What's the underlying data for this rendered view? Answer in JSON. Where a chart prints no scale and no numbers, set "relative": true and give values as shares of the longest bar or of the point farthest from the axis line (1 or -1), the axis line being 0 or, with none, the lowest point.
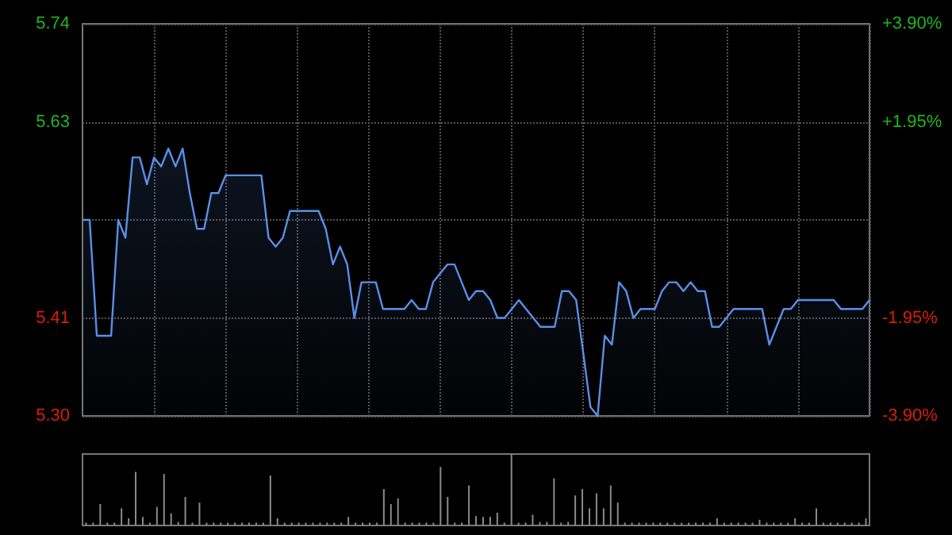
{
  "chart_data": [
    {
      "type": "area",
      "categories": [
        null,
        null,
        null,
        null,
        null,
        null,
        null,
        null,
        null,
        null,
        null,
        null,
        null,
        null,
        null,
        null,
        null,
        null,
        null,
        null,
        null,
        null,
        null,
        null,
        null,
        null,
        null,
        null,
        null,
        null,
        null,
        null,
        null,
        null,
        null,
        null,
        null,
        null,
        null,
        null,
        null,
        null,
        null,
        null,
        null,
        null,
        null,
        null,
        null,
        null,
        null,
        null,
        null,
        null,
        null,
        null,
        null,
        null,
        null,
        null,
        null,
        null,
        null,
        null,
        null,
        null,
        null,
        null,
        null,
        null,
        null,
        null,
        null,
        null,
        null,
        null,
        null,
        null,
        null,
        null,
        null,
        null,
        null,
        null,
        null,
        null,
        null,
        null,
        null,
        null,
        null,
        null,
        null,
        null,
        null,
        null,
        null,
        null,
        null,
        null,
        null,
        null,
        null,
        null,
        null,
        null,
        null,
        null,
        null,
        null,
        null
      ],
      "series": [
        {
          "color": "#5b8fe8",
          "values": [
            5.52,
            5.52,
            5.39,
            5.39,
            5.39,
            5.52,
            5.5,
            5.59,
            5.59,
            5.56,
            5.59,
            5.58,
            5.6,
            5.58,
            5.6,
            5.55,
            5.51,
            5.51,
            5.55,
            5.55,
            5.57,
            5.57,
            5.57,
            5.57,
            5.57,
            5.57,
            5.5,
            5.49,
            5.5,
            5.53,
            5.53,
            5.53,
            5.53,
            5.53,
            5.51,
            5.47,
            5.49,
            5.47,
            5.41,
            5.45,
            5.45,
            5.45,
            5.42,
            5.42,
            5.42,
            5.42,
            5.43,
            5.42,
            5.42,
            5.45,
            5.46,
            5.47,
            5.47,
            5.45,
            5.43,
            5.44,
            5.44,
            5.43,
            5.41,
            5.41,
            5.42,
            5.43,
            5.42,
            5.41,
            5.4,
            5.4,
            5.4,
            5.44,
            5.44,
            5.43,
            5.37,
            5.31,
            5.3,
            5.39,
            5.38,
            5.45,
            5.44,
            5.41,
            5.42,
            5.42,
            5.42,
            5.44,
            5.45,
            5.45,
            5.44,
            5.45,
            5.44,
            5.44,
            5.4,
            5.4,
            5.41,
            5.42,
            5.42,
            5.42,
            5.42,
            5.42,
            5.38,
            5.4,
            5.42,
            5.42,
            5.43,
            5.43,
            5.43,
            5.43,
            5.43,
            5.43,
            5.42,
            5.42,
            5.42,
            5.42,
            5.43
          ]
        }
      ],
      "ylim": [
        5.3,
        5.74
      ],
      "yticks": [
        {
          "value": 5.3,
          "label": "5.30"
        },
        5.41,
        {
          "value": 5.52,
          "label": null
        },
        5.63,
        5.74
      ],
      "y2lim": [
        -3.9,
        3.9
      ],
      "y2ticks": [
        {
          "value": -3.9,
          "label": "-3.90%"
        },
        {
          "value": -1.95,
          "label": "-1.95%"
        },
        {
          "value": 1.95,
          "label": "+1.95%"
        },
        {
          "value": 3.9,
          "label": "+3.90%"
        }
      ],
      "grid": true,
      "tick_labels": "y"
    },
    {
      "type": "bar",
      "relative": true,
      "categories": [
        null,
        null,
        null,
        null,
        null,
        null,
        null,
        null,
        null,
        null,
        null,
        null,
        null,
        null,
        null,
        null,
        null,
        null,
        null,
        null,
        null,
        null,
        null,
        null,
        null,
        null,
        null,
        null,
        null,
        null,
        null,
        null,
        null,
        null,
        null,
        null,
        null,
        null,
        null,
        null,
        null,
        null,
        null,
        null,
        null,
        null,
        null,
        null,
        null,
        null,
        null,
        null,
        null,
        null,
        null,
        null,
        null,
        null,
        null,
        null,
        null,
        null,
        null,
        null,
        null,
        null,
        null,
        null,
        null,
        null,
        null,
        null,
        null,
        null,
        null,
        null,
        null,
        null,
        null,
        null,
        null,
        null,
        null,
        null,
        null,
        null,
        null,
        null,
        null,
        null,
        null,
        null,
        null,
        null,
        null,
        null,
        null,
        null,
        null,
        null,
        null,
        null,
        null,
        null,
        null,
        null,
        null,
        null,
        null,
        null,
        null
      ],
      "series": [
        {
          "color": "#8a8a8a",
          "values": [
            0.04,
            0.04,
            0.3,
            0.04,
            0.04,
            0.24,
            0.1,
            0.75,
            0.12,
            0.04,
            0.26,
            0.72,
            0.17,
            0.05,
            0.4,
            0.04,
            0.32,
            0.04,
            0.04,
            0.04,
            0.04,
            0.04,
            0.04,
            0.04,
            0.04,
            0.04,
            0.7,
            0.1,
            0.04,
            0.04,
            0.04,
            0.04,
            0.04,
            0.04,
            0.04,
            0.04,
            0.04,
            0.12,
            0.04,
            0.04,
            0.04,
            0.04,
            0.51,
            0.3,
            0.38,
            0.04,
            0.04,
            0.04,
            0.04,
            0.04,
            0.82,
            0.4,
            0.04,
            0.04,
            0.56,
            0.13,
            0.12,
            0.12,
            0.18,
            0.04,
            1,
            0.04,
            0.04,
            0.15,
            0.05,
            0.05,
            0.66,
            0.04,
            0.05,
            0.42,
            0.51,
            0.24,
            0.45,
            0.24,
            0.56,
            0.32,
            0.04,
            0.04,
            0.04,
            0.04,
            0.04,
            0.04,
            0.04,
            0.04,
            0.04,
            0.04,
            0.04,
            0.04,
            0.04,
            0.1,
            0.04,
            0.04,
            0.04,
            0.04,
            0.04,
            0.08,
            0.04,
            0.04,
            0.04,
            0.04,
            0.1,
            0.04,
            0.04,
            0.24,
            0.04,
            0.04,
            0.04,
            0.04,
            0.04,
            0.04,
            0.1
          ]
        }
      ],
      "tick_labels": false
    }
  ]
}
